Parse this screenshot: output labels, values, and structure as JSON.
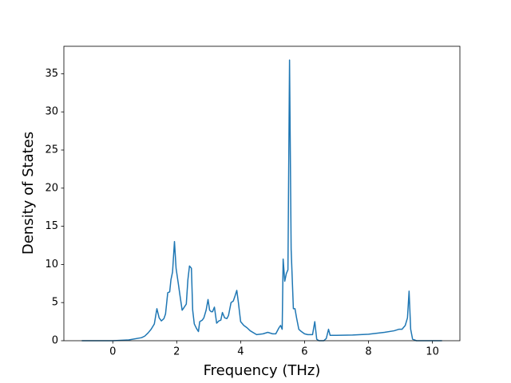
{
  "chart_data": {
    "type": "line",
    "xlabel": "Frequency (THz)",
    "ylabel": "Density of States",
    "color": "#1f77b4",
    "x": [
      -0.97,
      0,
      0.5,
      0.9,
      1.0,
      1.1,
      1.2,
      1.3,
      1.38,
      1.45,
      1.52,
      1.6,
      1.65,
      1.72,
      1.78,
      1.82,
      1.87,
      1.93,
      1.98,
      2.05,
      2.1,
      2.17,
      2.22,
      2.3,
      2.35,
      2.4,
      2.46,
      2.5,
      2.55,
      2.62,
      2.68,
      2.72,
      2.8,
      2.85,
      2.92,
      2.98,
      3.03,
      3.08,
      3.12,
      3.18,
      3.25,
      3.32,
      3.38,
      3.43,
      3.5,
      3.57,
      3.62,
      3.7,
      3.77,
      3.82,
      3.88,
      3.93,
      4.0,
      4.1,
      4.2,
      4.3,
      4.5,
      4.7,
      4.85,
      5.0,
      5.1,
      5.2,
      5.25,
      5.3,
      5.33,
      5.38,
      5.43,
      5.48,
      5.53,
      5.58,
      5.65,
      5.7,
      5.75,
      5.82,
      5.9,
      6.0,
      6.1,
      6.25,
      6.32,
      6.38,
      6.45,
      6.6,
      6.68,
      6.75,
      6.8,
      7.0,
      7.5,
      8.0,
      8.5,
      8.8,
      8.95,
      9.05,
      9.15,
      9.22,
      9.27,
      9.32,
      9.38,
      9.5,
      10.3
    ],
    "values": [
      0,
      0,
      0.1,
      0.4,
      0.6,
      1.0,
      1.5,
      2.2,
      4.2,
      3.0,
      2.6,
      2.9,
      3.5,
      6.3,
      6.4,
      8.0,
      9.0,
      13.0,
      9.5,
      7.5,
      6.0,
      4.0,
      4.3,
      4.8,
      8.0,
      9.8,
      9.5,
      4.0,
      2.2,
      1.6,
      1.2,
      2.5,
      2.7,
      3.0,
      4.0,
      5.4,
      4.0,
      3.8,
      3.8,
      4.4,
      2.3,
      2.6,
      2.7,
      3.7,
      3.0,
      2.9,
      3.3,
      5.0,
      5.2,
      5.8,
      6.6,
      5.0,
      2.5,
      2.0,
      1.7,
      1.3,
      0.8,
      0.9,
      1.1,
      0.9,
      0.9,
      1.7,
      2.0,
      1.5,
      10.7,
      7.8,
      8.8,
      9.3,
      36.8,
      12.0,
      4.2,
      4.2,
      3.0,
      1.5,
      1.2,
      0.9,
      0.8,
      0.8,
      2.5,
      0.2,
      0,
      0,
      0.3,
      1.5,
      0.7,
      0.7,
      0.75,
      0.85,
      1.1,
      1.3,
      1.5,
      1.5,
      2.0,
      3.0,
      6.5,
      1.5,
      0.2,
      0,
      0
    ],
    "xlim": [
      -1.53,
      10.86
    ],
    "ylim": [
      0,
      38.6
    ],
    "xticks": [
      0,
      2,
      4,
      6,
      8,
      10
    ],
    "yticks": [
      0,
      5,
      10,
      15,
      20,
      25,
      30,
      35
    ]
  }
}
